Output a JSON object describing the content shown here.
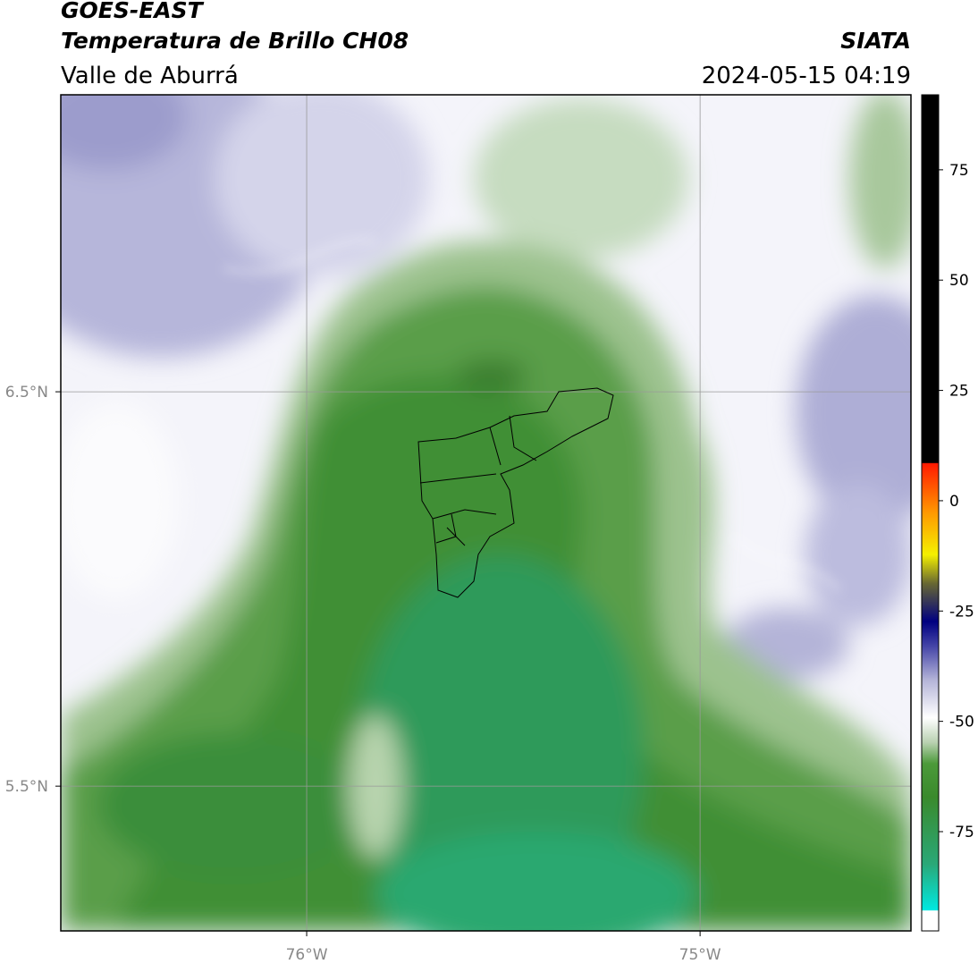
{
  "header": {
    "title": "GOES-EAST",
    "subtitle": "Temperatura de Brillo CH08",
    "region": "Valle de Aburrá",
    "source": "SIATA",
    "datetime": "2024-05-15 04:19"
  },
  "map": {
    "xlim": [
      -76.625,
      -74.464
    ],
    "ylim": [
      5.133,
      7.253
    ],
    "xticks": [
      {
        "value": -76,
        "label": "76°W"
      },
      {
        "value": -75,
        "label": "75°W"
      }
    ],
    "yticks": [
      {
        "value": 5.5,
        "label": "5.5°N"
      },
      {
        "value": 6.5,
        "label": "6.5°N"
      }
    ],
    "grid": true
  },
  "colorbar": {
    "lim": [
      -97.5,
      92
    ],
    "ticks": [
      -75,
      -50,
      -25,
      0,
      25,
      50,
      75
    ]
  }
}
